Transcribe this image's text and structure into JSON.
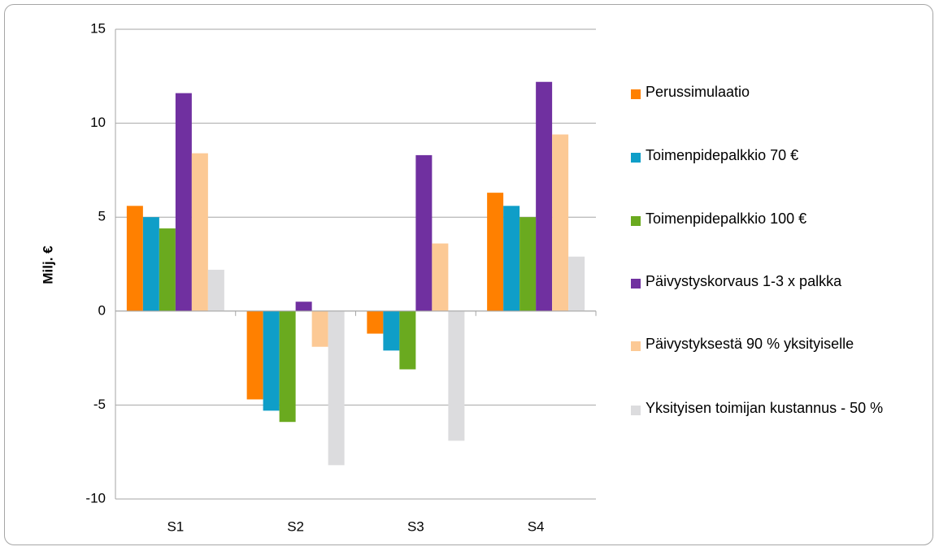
{
  "chart_data": {
    "type": "bar",
    "categories": [
      "S1",
      "S2",
      "S3",
      "S4"
    ],
    "ylabel": "Milj. €",
    "xlabel": "",
    "title": "",
    "ylim": [
      -10,
      15
    ],
    "yticks": [
      15,
      10,
      5,
      0,
      -5,
      -10
    ],
    "grid": true,
    "legend_position": "right",
    "series": [
      {
        "name": "Perussimulaatio",
        "color": "#ff8000",
        "values": [
          5.6,
          -4.7,
          -1.2,
          6.3
        ]
      },
      {
        "name": "Toimenpidepalkkio 70 €",
        "color": "#0f9ec8",
        "values": [
          5.0,
          -5.3,
          -2.1,
          5.6
        ]
      },
      {
        "name": "Toimenpidepalkkio 100 €",
        "color": "#6aaa1f",
        "values": [
          4.4,
          -5.9,
          -3.1,
          5.0
        ]
      },
      {
        "name": "Päivystyskorvaus 1-3 x palkka",
        "color": "#7030a0",
        "values": [
          11.6,
          0.5,
          8.3,
          12.2
        ]
      },
      {
        "name": "Päivystyksestä 90 % yksityiselle",
        "color": "#fcc995",
        "values": [
          8.4,
          -1.9,
          3.6,
          9.4
        ]
      },
      {
        "name": "Yksityisen toimijan kustannus - 50 %",
        "color": "#dcdcde",
        "values": [
          2.2,
          -8.2,
          -6.9,
          2.9
        ]
      }
    ]
  }
}
